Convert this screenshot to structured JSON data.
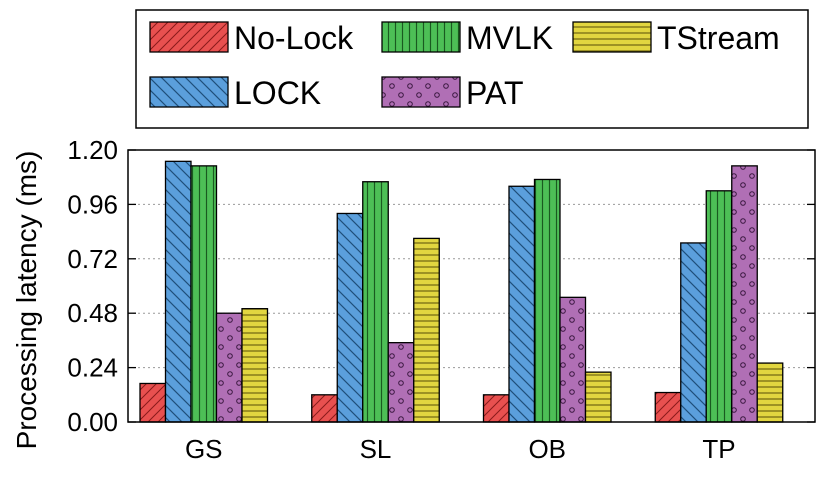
{
  "chart_data": {
    "type": "bar",
    "title": "",
    "xlabel": "",
    "ylabel": "Processing latency (ms)",
    "ylim": [
      0,
      1.2
    ],
    "yticks": [
      0.0,
      0.24,
      0.48,
      0.72,
      0.96,
      1.2
    ],
    "ytick_labels": [
      "0.00",
      "0.24",
      "0.48",
      "0.72",
      "0.96",
      "1.20"
    ],
    "grid": "horizontal-dotted",
    "legend_position": "top",
    "categories": [
      "GS",
      "SL",
      "OB",
      "TP"
    ],
    "series": [
      {
        "name": "No-Lock",
        "color": "#e8504f",
        "pattern": "diagonal-forward",
        "values": [
          0.17,
          0.12,
          0.12,
          0.13
        ]
      },
      {
        "name": "LOCK",
        "color": "#5b9fdc",
        "pattern": "diagonal-back",
        "values": [
          1.15,
          0.92,
          1.04,
          0.79
        ]
      },
      {
        "name": "MVLK",
        "color": "#4dbf56",
        "pattern": "vertical-lines",
        "values": [
          1.13,
          1.06,
          1.07,
          1.02
        ]
      },
      {
        "name": "PAT",
        "color": "#b06fb5",
        "pattern": "circles",
        "values": [
          0.48,
          0.35,
          0.55,
          1.13
        ]
      },
      {
        "name": "TStream",
        "color": "#e2d640",
        "pattern": "horizontal-lines",
        "values": [
          0.5,
          0.81,
          0.22,
          0.26
        ]
      }
    ],
    "legend_order": [
      "No-Lock",
      "MVLK",
      "TStream",
      "LOCK",
      "PAT"
    ]
  }
}
